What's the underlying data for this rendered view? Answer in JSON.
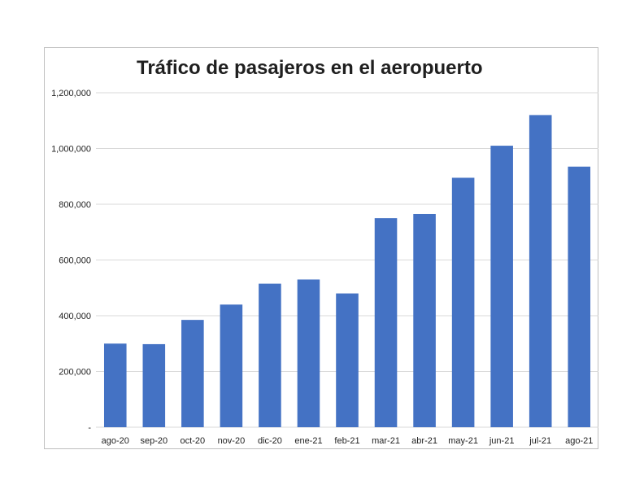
{
  "chart_data": {
    "type": "bar",
    "title": "Tráfico de pasajeros en el aeropuerto",
    "xlabel": "",
    "ylabel": "",
    "categories": [
      "ago-20",
      "sep-20",
      "oct-20",
      "nov-20",
      "dic-20",
      "ene-21",
      "feb-21",
      "mar-21",
      "abr-21",
      "may-21",
      "jun-21",
      "jul-21",
      "ago-21"
    ],
    "values": [
      300000,
      298000,
      385000,
      440000,
      515000,
      530000,
      480000,
      750000,
      765000,
      895000,
      1010000,
      1120000,
      935000
    ],
    "ylim": [
      0,
      1200000
    ],
    "yticks": [
      0,
      200000,
      400000,
      600000,
      800000,
      1000000,
      1200000
    ],
    "ytick_labels": [
      "-",
      "200,000",
      "400,000",
      "600,000",
      "800,000",
      "1,000,000",
      "1,200,000"
    ],
    "grid": true,
    "legend": "none",
    "bar_color": "#4472c4",
    "grid_color": "#d9d9d9"
  }
}
